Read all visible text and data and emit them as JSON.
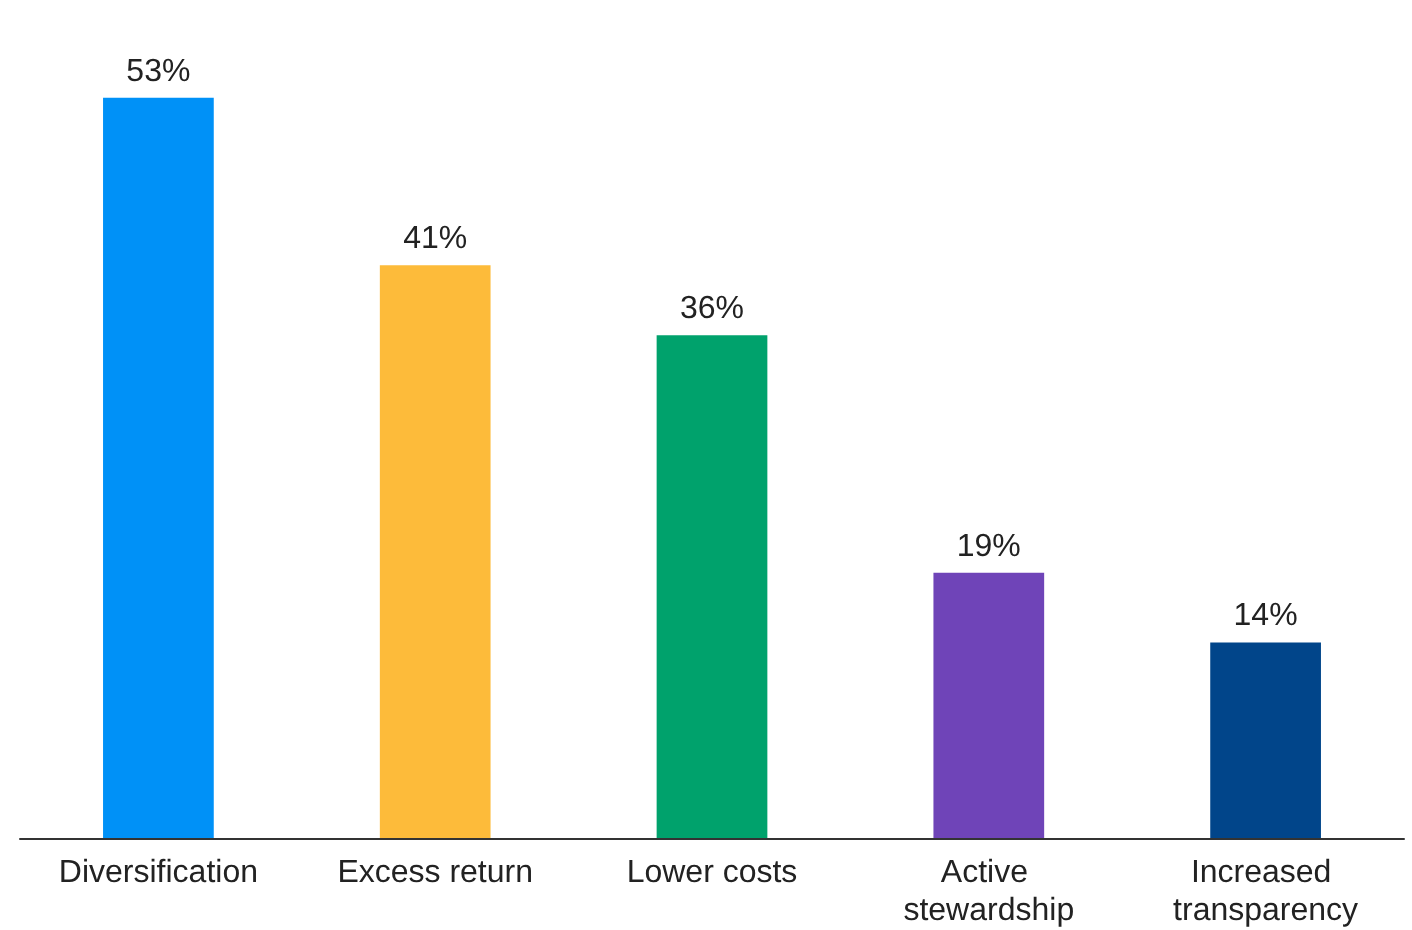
{
  "chart_data": {
    "type": "bar",
    "categories": [
      "Diversification",
      "Excess return",
      "Lower costs",
      "Active stewardship",
      "Increased transparency"
    ],
    "values": [
      53,
      41,
      36,
      19,
      14
    ],
    "colors": [
      "#0091f7",
      "#fdbb3a",
      "#00a26c",
      "#6f44b8",
      "#01458a"
    ],
    "value_labels": [
      "53%",
      "41%",
      "36%",
      "19%",
      "14%"
    ]
  }
}
